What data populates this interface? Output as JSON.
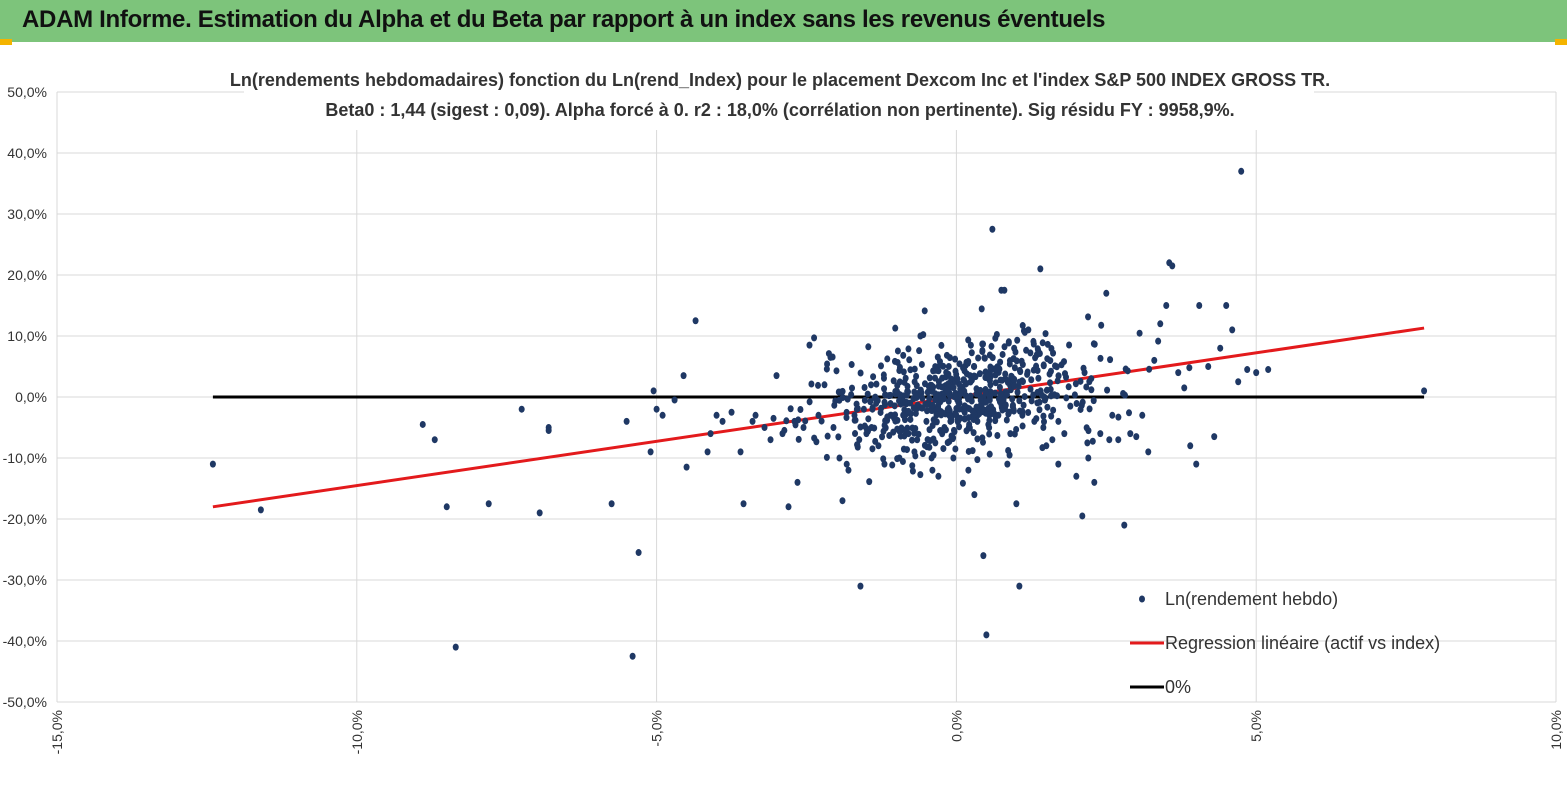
{
  "header": {
    "title": "ADAM Informe. Estimation du Alpha et du Beta par rapport à un index sans les revenus éventuels"
  },
  "colors": {
    "banner": "#7dc47b",
    "points": "#1f3864",
    "regression": "#e31a1c",
    "zero_line": "#000000"
  },
  "chart_data": {
    "type": "scatter",
    "title": "Ln(rendements hebdomadaires) fonction du Ln(rend_Index) pour le placement Dexcom Inc et l'index S&P 500 INDEX GROSS TR.",
    "subtitle": "Beta0 : 1,44 (sigest : 0,09).  Alpha forcé à 0. r2 : 18,0% (corrélation non pertinente). Sig résidu FY : 9958,9%.",
    "xlim": [
      -15,
      10
    ],
    "ylim": [
      -50,
      50
    ],
    "x_ticks": [
      "-15,0%",
      "-10,0%",
      "-5,0%",
      "0,0%",
      "5,0%",
      "10,0%"
    ],
    "y_ticks": [
      "50,0%",
      "40,0%",
      "30,0%",
      "20,0%",
      "10,0%",
      "0,0%",
      "-10,0%",
      "-20,0%",
      "-30,0%",
      "-40,0%",
      "-50,0%"
    ],
    "grid": true,
    "legend_position": "bottom-right",
    "series": [
      {
        "name": "Ln(rendement hebdo)",
        "kind": "scatter",
        "points": [
          [
            -12.4,
            -11
          ],
          [
            -11.6,
            -18.5
          ],
          [
            -8.9,
            -4.5
          ],
          [
            -8.7,
            -7
          ],
          [
            -8.5,
            -18
          ],
          [
            -8.35,
            -41
          ],
          [
            -7.8,
            -17.5
          ],
          [
            -7.25,
            -2
          ],
          [
            -6.95,
            -19
          ],
          [
            -6.8,
            -5
          ],
          [
            -6.8,
            -5.5
          ],
          [
            -5.75,
            -17.5
          ],
          [
            -5.5,
            -4
          ],
          [
            -5.4,
            -42.5
          ],
          [
            -5.3,
            -25.5
          ],
          [
            -5.05,
            1
          ],
          [
            -5.1,
            -9
          ],
          [
            -5.0,
            -2
          ],
          [
            -4.9,
            -3
          ],
          [
            -4.7,
            -0.5
          ],
          [
            -4.55,
            3.5
          ],
          [
            -4.5,
            -11.5
          ],
          [
            -4.35,
            12.5
          ],
          [
            -4.15,
            -9
          ],
          [
            -4.1,
            -6
          ],
          [
            -4.0,
            -3
          ],
          [
            -3.9,
            -4
          ],
          [
            -3.75,
            -2.5
          ],
          [
            -3.6,
            -9
          ],
          [
            -3.55,
            -17.5
          ],
          [
            -3.4,
            -4
          ],
          [
            -3.35,
            -3
          ],
          [
            -3.2,
            -5
          ],
          [
            -3.1,
            -7
          ],
          [
            -3.05,
            -3.5
          ],
          [
            -3.0,
            3.5
          ],
          [
            -2.9,
            -6
          ],
          [
            -2.8,
            -18
          ],
          [
            -2.7,
            -4
          ],
          [
            -2.65,
            -14
          ],
          [
            -2.55,
            -5
          ],
          [
            -2.45,
            8.5
          ],
          [
            -2.3,
            -3
          ],
          [
            -2.2,
            2
          ],
          [
            -2.1,
            6.5
          ],
          [
            -2.05,
            -5
          ],
          [
            -1.95,
            -10
          ],
          [
            -1.9,
            -17
          ],
          [
            -1.8,
            -12
          ],
          [
            -1.7,
            -3
          ],
          [
            -1.6,
            -31
          ],
          [
            -1.5,
            -6
          ],
          [
            -1.4,
            -2
          ],
          [
            -1.3,
            -8
          ],
          [
            -1.2,
            -11
          ],
          [
            -1.1,
            -3
          ],
          [
            -0.95,
            -10
          ],
          [
            -0.9,
            -1
          ],
          [
            -0.8,
            -6
          ],
          [
            -0.7,
            -9
          ],
          [
            -0.6,
            10
          ],
          [
            -0.5,
            -4
          ],
          [
            -0.4,
            -12
          ],
          [
            -0.3,
            -13
          ],
          [
            -0.2,
            -5
          ],
          [
            -0.1,
            -4
          ],
          [
            -0.05,
            -10
          ],
          [
            0.0,
            -3
          ],
          [
            0.05,
            -1
          ],
          [
            0.1,
            -2
          ],
          [
            0.2,
            -12
          ],
          [
            0.3,
            -16
          ],
          [
            0.35,
            -4
          ],
          [
            0.45,
            -26
          ],
          [
            0.5,
            -39
          ],
          [
            0.55,
            -3
          ],
          [
            0.6,
            27.5
          ],
          [
            0.7,
            -3
          ],
          [
            0.75,
            17.5
          ],
          [
            0.8,
            17.5
          ],
          [
            0.85,
            -11
          ],
          [
            0.9,
            -6
          ],
          [
            1.0,
            -17.5
          ],
          [
            1.05,
            -31
          ],
          [
            1.1,
            -3
          ],
          [
            1.2,
            11
          ],
          [
            1.3,
            -4
          ],
          [
            1.4,
            21
          ],
          [
            1.45,
            -5
          ],
          [
            1.5,
            -8
          ],
          [
            1.6,
            -7
          ],
          [
            1.7,
            -11
          ],
          [
            1.8,
            -6
          ],
          [
            1.9,
            -1.5
          ],
          [
            2.0,
            -13
          ],
          [
            2.1,
            -19.5
          ],
          [
            2.2,
            -10
          ],
          [
            2.3,
            -14
          ],
          [
            2.4,
            -6
          ],
          [
            2.5,
            17
          ],
          [
            2.55,
            -7
          ],
          [
            2.6,
            -3
          ],
          [
            2.7,
            -7
          ],
          [
            2.8,
            -21
          ],
          [
            2.9,
            -6
          ],
          [
            3.0,
            -6.5
          ],
          [
            3.1,
            -3
          ],
          [
            3.2,
            -9
          ],
          [
            3.3,
            6
          ],
          [
            3.4,
            12
          ],
          [
            3.5,
            15
          ],
          [
            3.55,
            22
          ],
          [
            3.6,
            21.5
          ],
          [
            3.7,
            4
          ],
          [
            3.8,
            1.5
          ],
          [
            3.9,
            -8
          ],
          [
            4.0,
            -11
          ],
          [
            4.05,
            15
          ],
          [
            4.2,
            5
          ],
          [
            4.3,
            -6.5
          ],
          [
            4.4,
            8
          ],
          [
            4.5,
            15
          ],
          [
            4.6,
            11
          ],
          [
            4.7,
            2.5
          ],
          [
            4.75,
            37
          ],
          [
            4.85,
            4.5
          ],
          [
            5.0,
            4
          ],
          [
            5.2,
            4.5
          ],
          [
            7.8,
            1
          ]
        ]
      },
      {
        "name": "Regression linéaire (actif vs index)",
        "kind": "line",
        "points": [
          [
            -12.4,
            -18
          ],
          [
            7.8,
            11.3
          ]
        ]
      },
      {
        "name": "0%",
        "kind": "line",
        "points": [
          [
            -12.4,
            0
          ],
          [
            7.8,
            0
          ]
        ]
      }
    ]
  }
}
